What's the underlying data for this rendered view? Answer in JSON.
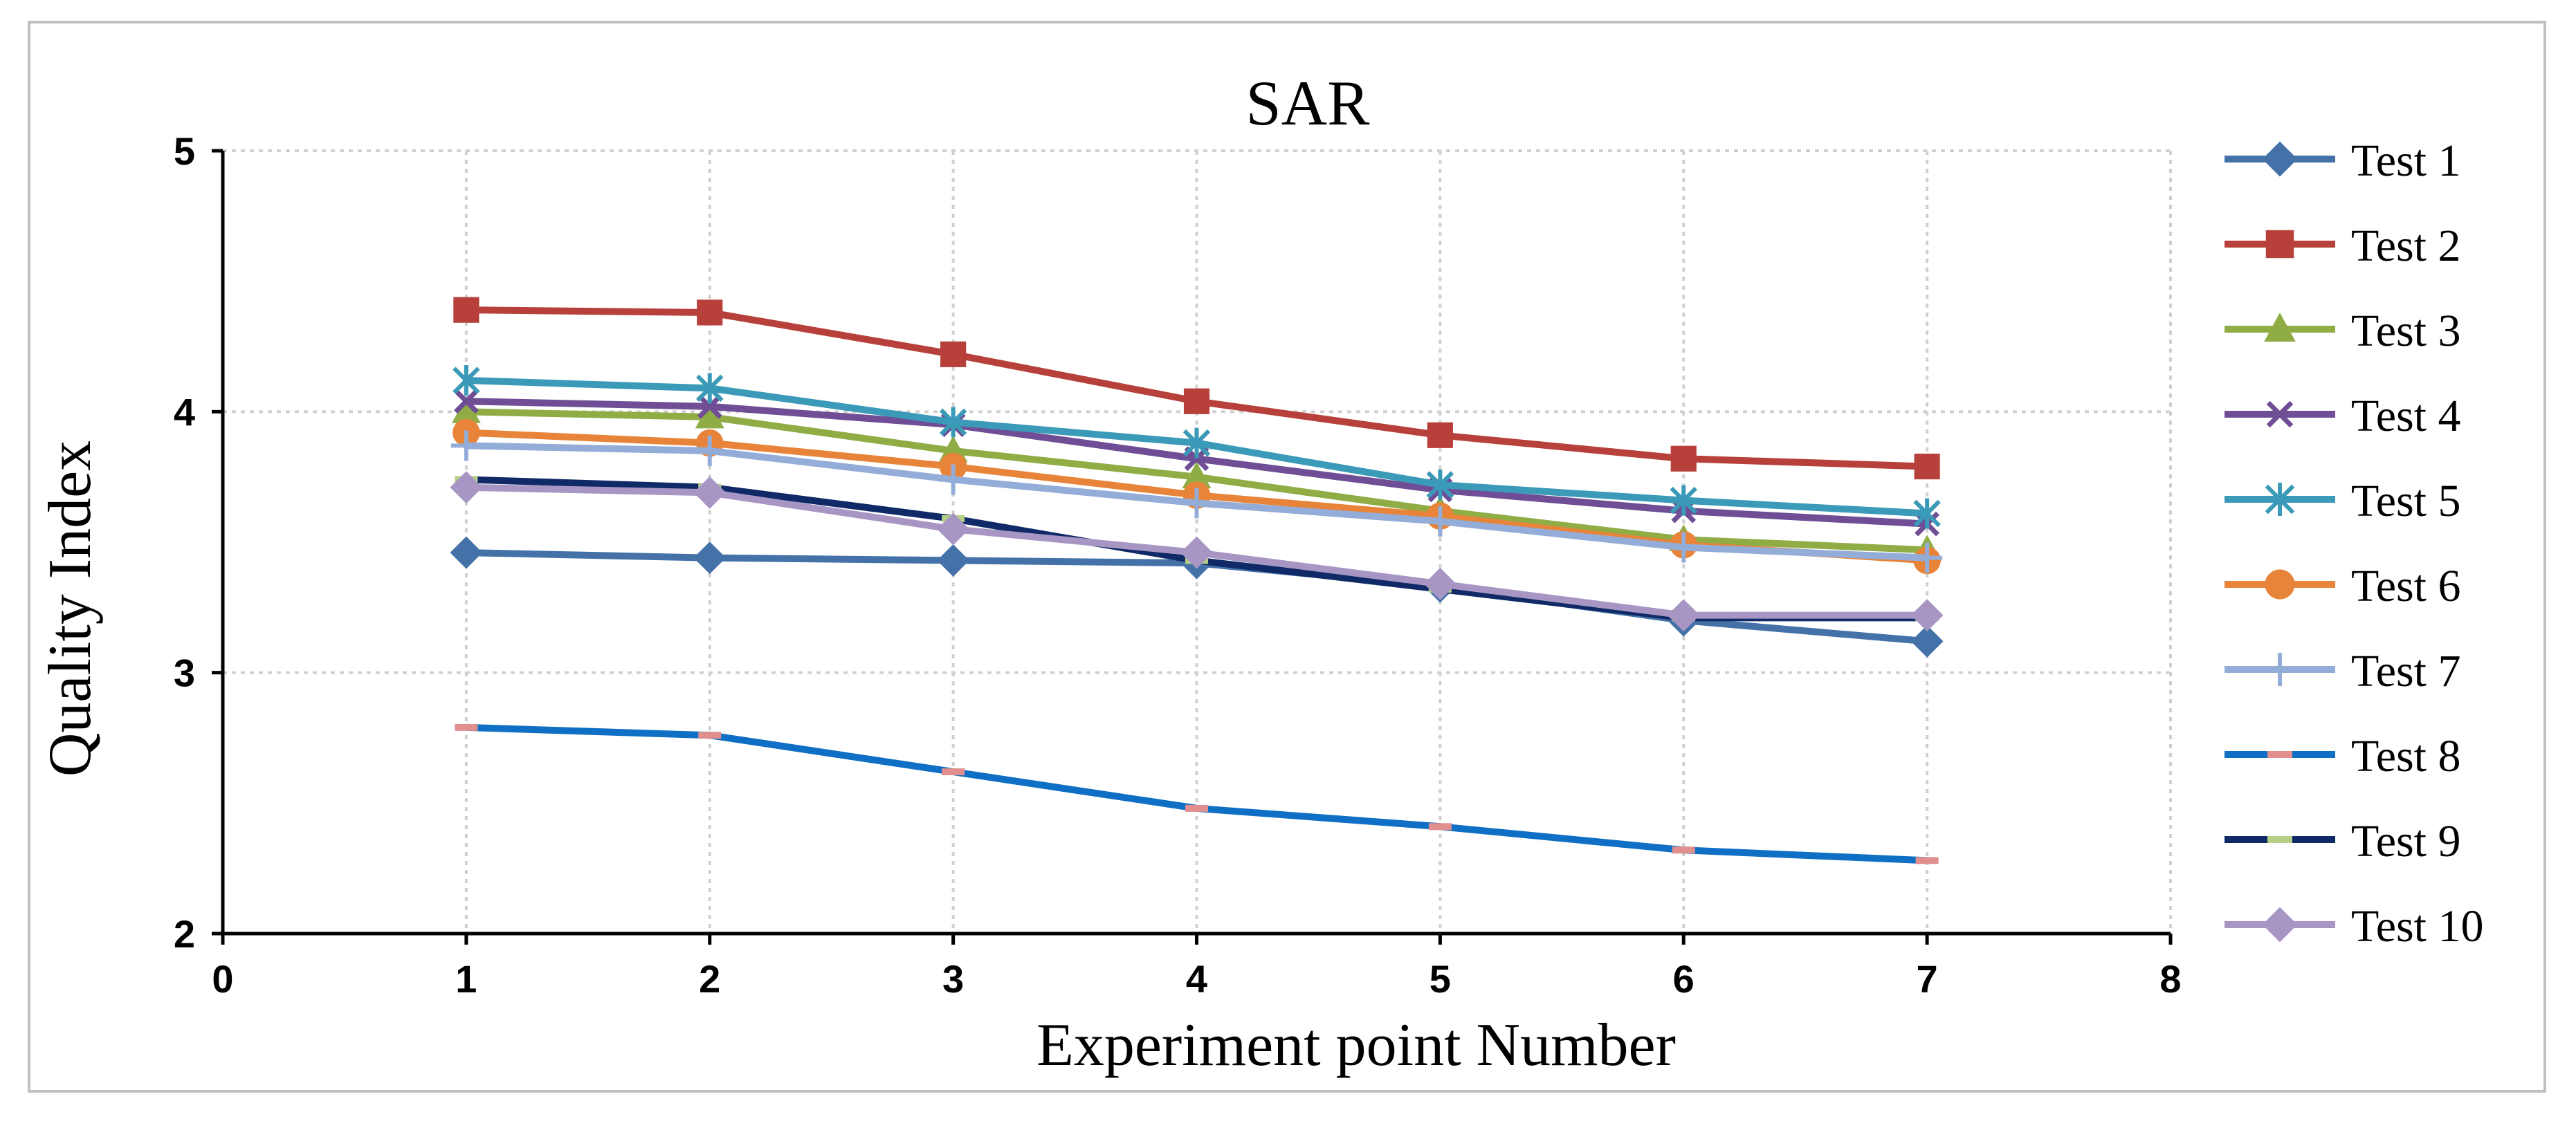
{
  "chart_data": {
    "type": "line",
    "title": "SAR",
    "xlabel": "Experiment point Number",
    "ylabel": "Quality Index",
    "xlim": [
      0,
      8
    ],
    "ylim": [
      2,
      5
    ],
    "x_ticks": [
      "0",
      "1",
      "2",
      "3",
      "4",
      "5",
      "6",
      "7",
      "8"
    ],
    "y_ticks": [
      "2",
      "3",
      "4",
      "5"
    ],
    "grid": true,
    "legend_position": "right",
    "x": [
      1,
      2,
      3,
      4,
      5,
      6,
      7
    ],
    "series": [
      {
        "name": "Test 1",
        "color": "#4472a8",
        "marker": "diamond",
        "values": [
          3.46,
          3.44,
          3.43,
          3.42,
          3.33,
          3.2,
          3.12
        ]
      },
      {
        "name": "Test 2",
        "color": "#b8403a",
        "marker": "square",
        "values": [
          4.39,
          4.38,
          4.22,
          4.04,
          3.91,
          3.82,
          3.79
        ]
      },
      {
        "name": "Test 3",
        "color": "#8fac45",
        "marker": "triangle",
        "values": [
          4.0,
          3.98,
          3.85,
          3.75,
          3.62,
          3.51,
          3.47
        ]
      },
      {
        "name": "Test 4",
        "color": "#6f4e95",
        "marker": "x",
        "values": [
          4.04,
          4.02,
          3.95,
          3.82,
          3.7,
          3.62,
          3.57
        ]
      },
      {
        "name": "Test 5",
        "color": "#3a9ab8",
        "marker": "star",
        "values": [
          4.12,
          4.09,
          3.96,
          3.88,
          3.72,
          3.66,
          3.61
        ]
      },
      {
        "name": "Test 6",
        "color": "#e8843a",
        "marker": "circle",
        "values": [
          3.92,
          3.88,
          3.79,
          3.68,
          3.6,
          3.49,
          3.43
        ]
      },
      {
        "name": "Test 7",
        "color": "#94add8",
        "marker": "plus",
        "values": [
          3.87,
          3.85,
          3.74,
          3.65,
          3.58,
          3.48,
          3.44
        ]
      },
      {
        "name": "Test 8",
        "color": "#0e6fc4",
        "marker": "dash",
        "marker_color": "#e08e8e",
        "values": [
          2.79,
          2.76,
          2.62,
          2.48,
          2.41,
          2.32,
          2.28
        ]
      },
      {
        "name": "Test 9",
        "color": "#0f2a66",
        "marker": "dash",
        "marker_color": "#b5cf87",
        "values": [
          3.74,
          3.71,
          3.59,
          3.43,
          3.32,
          3.21,
          3.21
        ]
      },
      {
        "name": "Test 10",
        "color": "#a796c4",
        "marker": "diamond",
        "values": [
          3.71,
          3.69,
          3.55,
          3.46,
          3.34,
          3.22,
          3.22
        ]
      }
    ]
  }
}
